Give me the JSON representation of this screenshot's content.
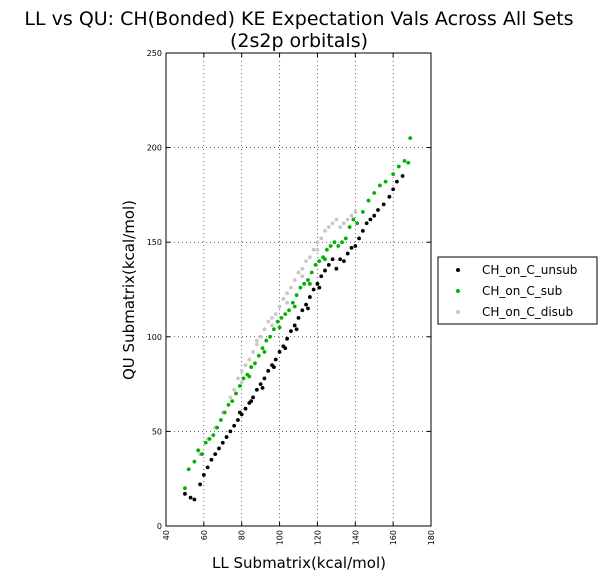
{
  "chart_data": {
    "type": "scatter",
    "title_line1": "LL vs QU: CH(Bonded) KE Expectation Vals Across All Sets",
    "title_line2": "(2s2p orbitals)",
    "xlabel": "LL Submatrix(kcal/mol)",
    "ylabel": "QU Submatrix(kcal/mol)",
    "xlim": [
      40,
      180
    ],
    "ylim": [
      0,
      250
    ],
    "xticks": [
      "40",
      "60",
      "80",
      "100",
      "120",
      "140",
      "160",
      "180"
    ],
    "yticks": [
      "0",
      "50",
      "100",
      "150",
      "200",
      "250"
    ],
    "grid": true,
    "legend_position": "outside-right",
    "series": [
      {
        "name": "CH_on_C_unsub",
        "color": "#000000",
        "points": [
          [
            50,
            17
          ],
          [
            53,
            15
          ],
          [
            55,
            14
          ],
          [
            58,
            22
          ],
          [
            60,
            27
          ],
          [
            62,
            31
          ],
          [
            64,
            35
          ],
          [
            66,
            38
          ],
          [
            68,
            41
          ],
          [
            70,
            44
          ],
          [
            72,
            47
          ],
          [
            74,
            50
          ],
          [
            76,
            53
          ],
          [
            78,
            56
          ],
          [
            80,
            59
          ],
          [
            82,
            62
          ],
          [
            84,
            65
          ],
          [
            86,
            68
          ],
          [
            88,
            72
          ],
          [
            90,
            75
          ],
          [
            92,
            78
          ],
          [
            94,
            82
          ],
          [
            96,
            85
          ],
          [
            98,
            88
          ],
          [
            100,
            92
          ],
          [
            102,
            95
          ],
          [
            104,
            99
          ],
          [
            106,
            103
          ],
          [
            108,
            106
          ],
          [
            110,
            110
          ],
          [
            112,
            114
          ],
          [
            114,
            117
          ],
          [
            116,
            121
          ],
          [
            118,
            125
          ],
          [
            120,
            128
          ],
          [
            122,
            132
          ],
          [
            124,
            135
          ],
          [
            126,
            138
          ],
          [
            128,
            141
          ],
          [
            130,
            136
          ],
          [
            132,
            141
          ],
          [
            134,
            140
          ],
          [
            136,
            144
          ],
          [
            138,
            147
          ],
          [
            140,
            148
          ],
          [
            142,
            152
          ],
          [
            144,
            156
          ],
          [
            146,
            160
          ],
          [
            148,
            162
          ],
          [
            150,
            164
          ],
          [
            152,
            167
          ],
          [
            155,
            170
          ],
          [
            158,
            174
          ],
          [
            160,
            178
          ],
          [
            162,
            182
          ],
          [
            165,
            185
          ],
          [
            79,
            60
          ],
          [
            85,
            66
          ],
          [
            91,
            73
          ],
          [
            97,
            84
          ],
          [
            103,
            94
          ],
          [
            109,
            104
          ],
          [
            115,
            115
          ],
          [
            121,
            126
          ]
        ]
      },
      {
        "name": "CH_on_C_sub",
        "color": "#00b300",
        "points": [
          [
            50,
            20
          ],
          [
            52,
            30
          ],
          [
            55,
            34
          ],
          [
            57,
            40
          ],
          [
            59,
            38
          ],
          [
            61,
            44
          ],
          [
            63,
            46
          ],
          [
            65,
            48
          ],
          [
            67,
            52
          ],
          [
            69,
            56
          ],
          [
            71,
            60
          ],
          [
            73,
            64
          ],
          [
            75,
            66
          ],
          [
            77,
            70
          ],
          [
            79,
            74
          ],
          [
            81,
            78
          ],
          [
            83,
            80
          ],
          [
            85,
            84
          ],
          [
            87,
            86
          ],
          [
            89,
            90
          ],
          [
            91,
            94
          ],
          [
            93,
            98
          ],
          [
            95,
            100
          ],
          [
            97,
            104
          ],
          [
            99,
            108
          ],
          [
            101,
            110
          ],
          [
            103,
            112
          ],
          [
            105,
            114
          ],
          [
            107,
            118
          ],
          [
            109,
            122
          ],
          [
            111,
            126
          ],
          [
            113,
            128
          ],
          [
            115,
            130
          ],
          [
            117,
            134
          ],
          [
            119,
            138
          ],
          [
            121,
            140
          ],
          [
            123,
            142
          ],
          [
            125,
            146
          ],
          [
            127,
            148
          ],
          [
            129,
            150
          ],
          [
            131,
            148
          ],
          [
            133,
            150
          ],
          [
            135,
            152
          ],
          [
            137,
            158
          ],
          [
            139,
            162
          ],
          [
            141,
            160
          ],
          [
            144,
            166
          ],
          [
            147,
            172
          ],
          [
            150,
            176
          ],
          [
            153,
            180
          ],
          [
            156,
            182
          ],
          [
            160,
            186
          ],
          [
            163,
            190
          ],
          [
            166,
            193
          ],
          [
            169,
            205
          ],
          [
            168,
            192
          ],
          [
            84,
            79
          ],
          [
            92,
            92
          ],
          [
            100,
            105
          ],
          [
            108,
            116
          ],
          [
            116,
            128
          ],
          [
            124,
            141
          ]
        ]
      },
      {
        "name": "CH_on_C_disub",
        "color": "#c8c8c8",
        "points": [
          [
            58,
            38
          ],
          [
            62,
            46
          ],
          [
            66,
            52
          ],
          [
            70,
            60
          ],
          [
            74,
            68
          ],
          [
            76,
            72
          ],
          [
            78,
            78
          ],
          [
            80,
            82
          ],
          [
            82,
            85
          ],
          [
            84,
            88
          ],
          [
            86,
            92
          ],
          [
            88,
            96
          ],
          [
            90,
            100
          ],
          [
            92,
            104
          ],
          [
            94,
            108
          ],
          [
            96,
            110
          ],
          [
            98,
            112
          ],
          [
            100,
            116
          ],
          [
            102,
            120
          ],
          [
            104,
            123
          ],
          [
            106,
            126
          ],
          [
            108,
            130
          ],
          [
            110,
            134
          ],
          [
            112,
            136
          ],
          [
            114,
            140
          ],
          [
            116,
            142
          ],
          [
            118,
            146
          ],
          [
            120,
            150
          ],
          [
            122,
            152
          ],
          [
            124,
            156
          ],
          [
            126,
            158
          ],
          [
            128,
            160
          ],
          [
            130,
            162
          ],
          [
            132,
            158
          ],
          [
            134,
            160
          ],
          [
            136,
            162
          ],
          [
            138,
            164
          ],
          [
            140,
            166
          ],
          [
            80,
            76
          ],
          [
            88,
            98
          ],
          [
            96,
            106
          ],
          [
            104,
            118
          ],
          [
            112,
            132
          ],
          [
            120,
            146
          ]
        ]
      }
    ]
  }
}
